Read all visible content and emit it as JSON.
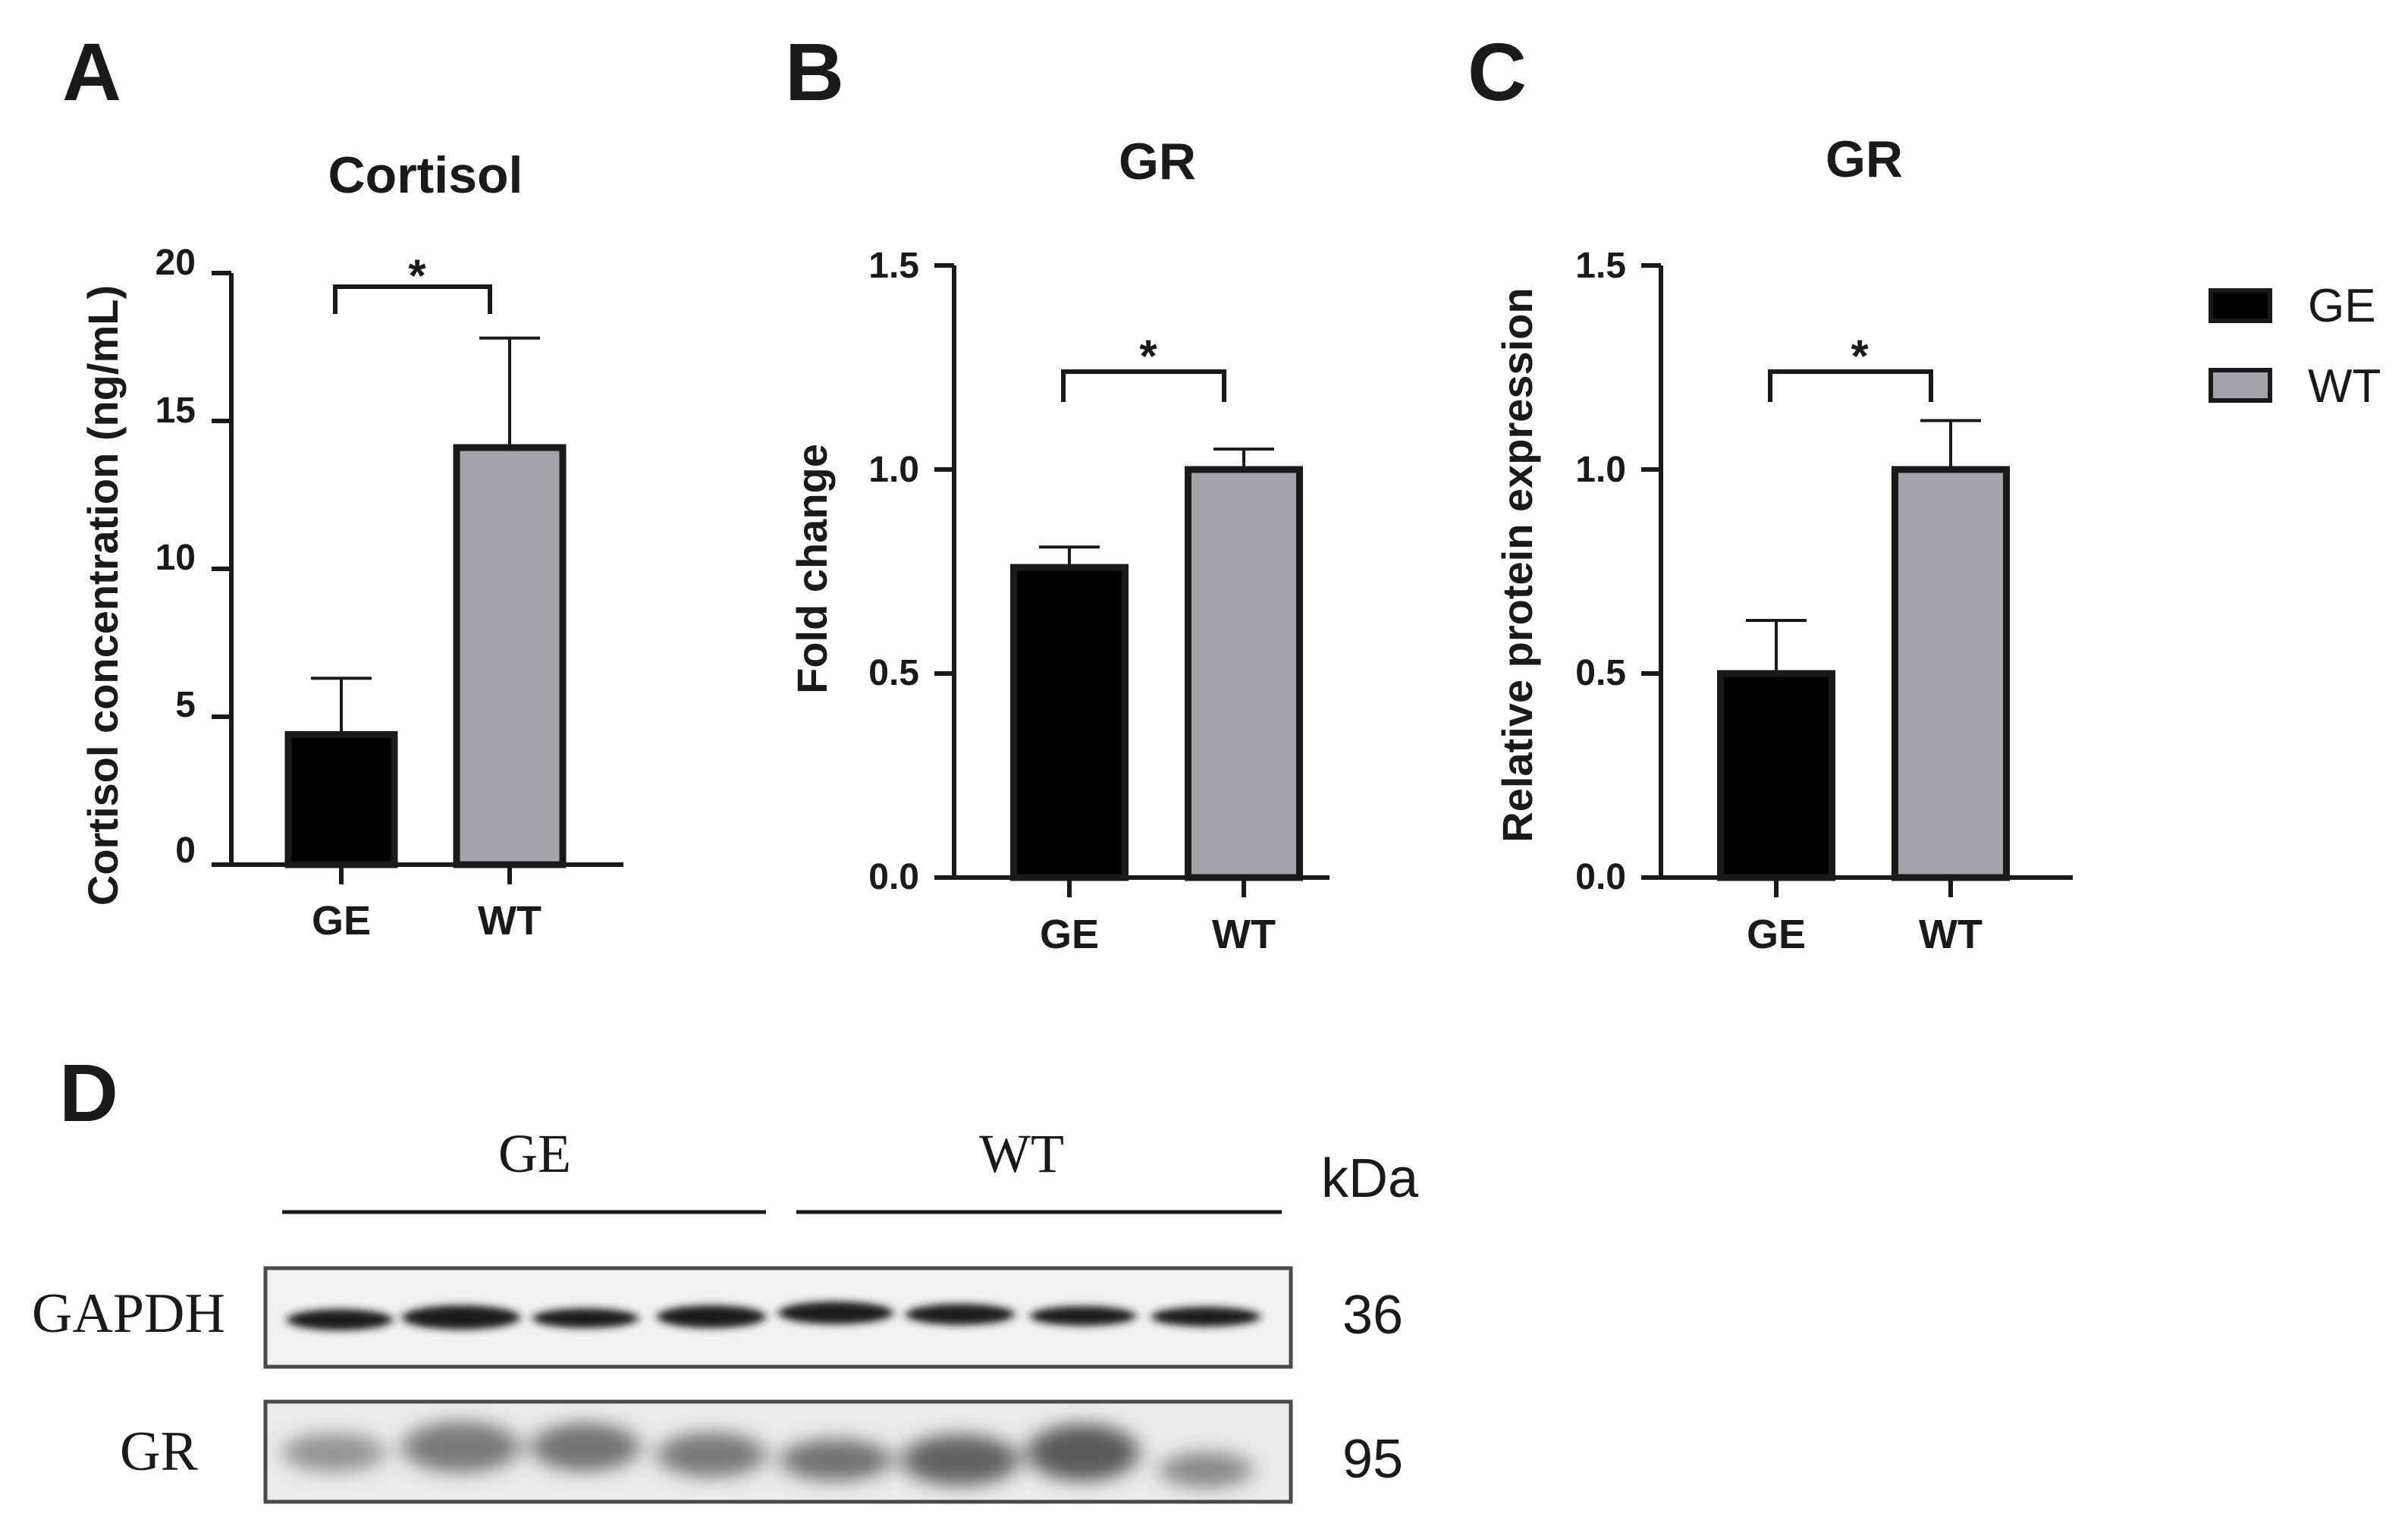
{
  "panels": {
    "a": "A",
    "b": "B",
    "c": "C",
    "d": "D"
  },
  "colors": {
    "GE": "#000000",
    "WT": "#a3a3a8",
    "axis": "#1a1a1a"
  },
  "chart_data": [
    {
      "type": "bar",
      "title": "Cortisol",
      "ylabel": "Cortisol concentration (ng/mL)",
      "xlabel": "",
      "categories": [
        "GE",
        "WT"
      ],
      "values": [
        4.4,
        14.1
      ],
      "errors": [
        1.9,
        3.7
      ],
      "ylim": [
        0,
        20
      ],
      "yticks": [
        "0",
        "5",
        "10",
        "15",
        "20"
      ],
      "significance": "*"
    },
    {
      "type": "bar",
      "title": "GR",
      "ylabel": "Fold change",
      "xlabel": "",
      "categories": [
        "GE",
        "WT"
      ],
      "values": [
        0.76,
        1.0
      ],
      "errors": [
        0.05,
        0.05
      ],
      "ylim": [
        0,
        1.5
      ],
      "yticks": [
        "0.0",
        "0.5",
        "1.0",
        "1.5"
      ],
      "significance": "*"
    },
    {
      "type": "bar",
      "title": "GR",
      "ylabel": "Relative protein expression",
      "xlabel": "",
      "categories": [
        "GE",
        "WT"
      ],
      "values": [
        0.5,
        1.0
      ],
      "errors": [
        0.13,
        0.12
      ],
      "ylim": [
        0,
        1.5
      ],
      "yticks": [
        "0.0",
        "0.5",
        "1.0",
        "1.5"
      ],
      "significance": "*"
    }
  ],
  "legend": [
    {
      "label": "GE",
      "color": "#000000"
    },
    {
      "label": "WT",
      "color": "#a3a3a8"
    }
  ],
  "blot": {
    "groups": [
      "GE",
      "WT"
    ],
    "unit": "kDa",
    "rows": [
      {
        "protein": "GAPDH",
        "mw": "36"
      },
      {
        "protein": "GR",
        "mw": "95"
      }
    ]
  }
}
